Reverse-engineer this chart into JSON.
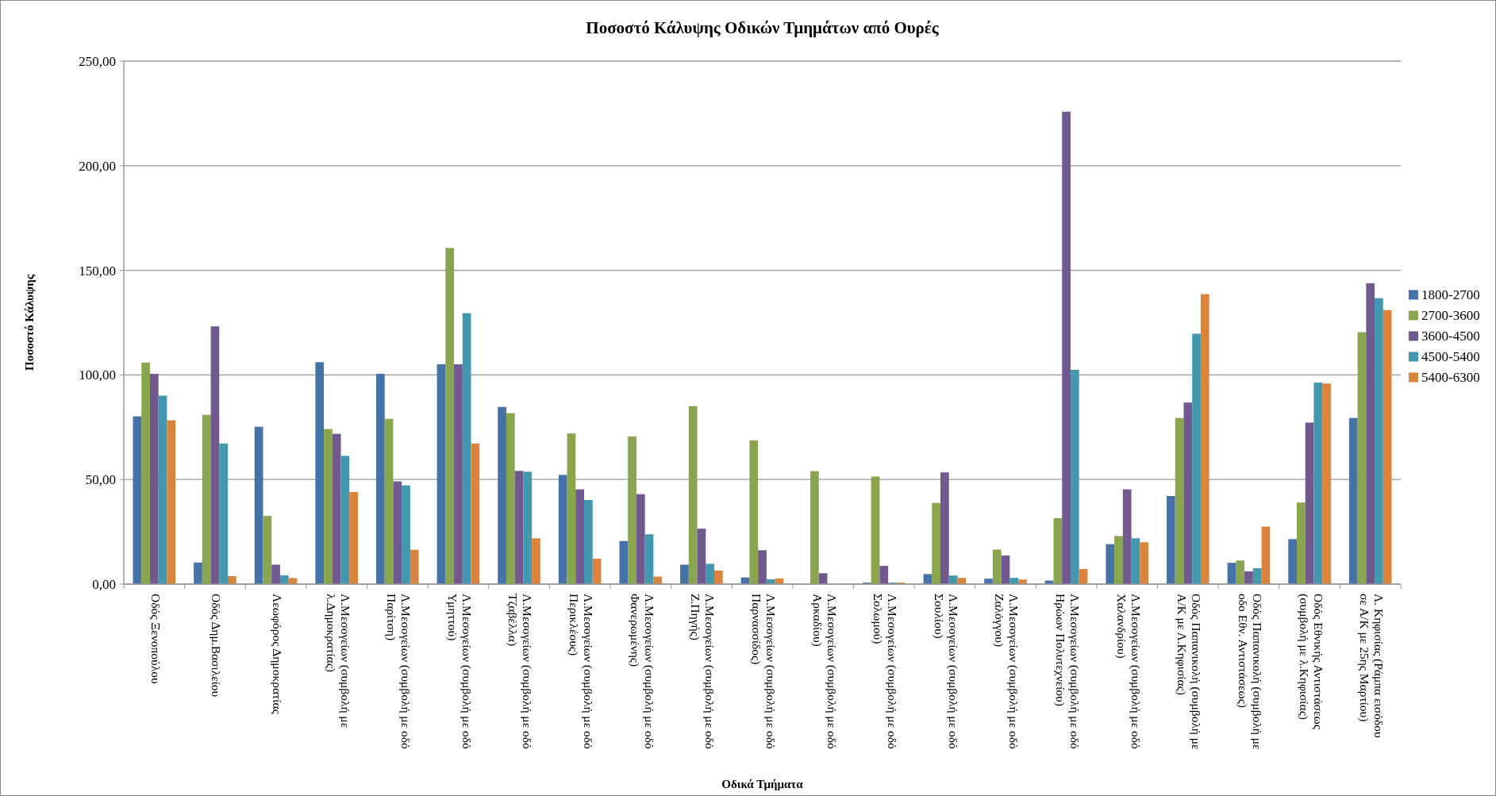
{
  "chart_data": {
    "type": "bar",
    "title": "Ποσοστό Κάλυψης Οδικών Τμημάτων από Ουρές",
    "xlabel": "Οδικά Τμήματα",
    "ylabel": "Ποσοστό Κάλυψης",
    "categories": [
      "Οδός Ξενοπούλου",
      "Οδός Δημ.Βασιλείου",
      "Λεωφόρος Δημοκρατίας",
      "Λ.Μεσογείων (συμβολή με λ.Δημοκρατίας)",
      "Λ.Μεσογείων (συμβολή με οδό Παρίτση)",
      "Λ.Μεσογείων (συμβολή με οδό Υμηττού)",
      "Λ.Μεσογείων (συμβολή με οδό Τζαβέλλα)",
      "Λ.Μεσογείων (συμβολή με οδό Περικλέους)",
      "Λ.Μεσογείων (συμβολή με οδό Φανερωμένης)",
      "Λ.Μεσογείων (συμβολή με οδό Ζ.Πηγής)",
      "Λ.Μεσογείων (συμβολή με οδό Παρνασσίδος)",
      "Λ.Μεσογείων (συμβολή με οδό Αρκαδίου)",
      "Λ.Μεσογείων (συμβολή με οδό Σολωμού)",
      "Λ.Μεσογείων (συμβολή με οδό Σουλίου)",
      "Λ.Μεσογείων (συμβολή με οδό Ζαλόγγου)",
      "Λ.Μεσογείων (συμβολή με οδό Ηρώων Πολυτεχνείου)",
      "Λ.Μεσογείων (συμβολή με οδό Χαλανδρίου)",
      "Οδός Παπανικολή (συμβολή με Α/Κ με Λ.Κηφισίας)",
      "Οδός Παπανικολή (συμβολή με οδο Εθν. Αντιστάσεως)",
      "Οδός Εθνικής Αντιστάσεως (συμβολή με λ.Κηφισίας)",
      "Λ. Κηφισίας (Ράμπα εισόδου σε Α/Κ με 25ης Μαρτίου)"
    ],
    "series": [
      {
        "name": "1800-2700",
        "color": "#4572a7",
        "values": [
          80.2,
          10.3,
          75.2,
          106.1,
          100.5,
          105.1,
          84.7,
          52.2,
          20.6,
          9.3,
          3.2,
          0,
          0.7,
          4.8,
          2.6,
          1.7,
          19.1,
          42.1,
          10.2,
          21.5,
          79.4
        ]
      },
      {
        "name": "2700-3600",
        "color": "#89a54e",
        "values": [
          105.9,
          80.9,
          32.6,
          74.1,
          79.0,
          160.7,
          81.7,
          72.0,
          70.6,
          85.1,
          68.7,
          54.0,
          51.4,
          38.8,
          16.5,
          31.5,
          23.0,
          79.4,
          11.3,
          39.0,
          120.4
        ]
      },
      {
        "name": "3600-4500",
        "color": "#71588f",
        "values": [
          100.5,
          123.2,
          9.3,
          71.8,
          49.1,
          105.1,
          54.1,
          45.3,
          43.0,
          26.5,
          16.2,
          5.2,
          8.7,
          53.4,
          13.7,
          225.8,
          45.3,
          86.8,
          6.1,
          77.2,
          143.8
        ]
      },
      {
        "name": "4500-5400",
        "color": "#4198af",
        "values": [
          90.1,
          67.2,
          4.2,
          61.3,
          47.2,
          129.5,
          53.7,
          40.2,
          23.8,
          9.7,
          2.3,
          0,
          0.7,
          4.1,
          3.0,
          102.4,
          21.9,
          119.7,
          7.6,
          96.3,
          136.7
        ]
      },
      {
        "name": "5400-6300",
        "color": "#db843d",
        "values": [
          78.3,
          3.8,
          2.9,
          44.0,
          16.4,
          67.2,
          21.9,
          12.2,
          3.6,
          6.5,
          2.7,
          0,
          0.7,
          3.0,
          2.2,
          7.2,
          20.0,
          138.6,
          27.5,
          95.9,
          131.0
        ]
      }
    ],
    "ylim": [
      0,
      250
    ],
    "yticks": [
      {
        "value": 0,
        "label": "0,00"
      },
      {
        "value": 50,
        "label": "50,00"
      },
      {
        "value": 100,
        "label": "100,00"
      },
      {
        "value": 150,
        "label": "150,00"
      },
      {
        "value": 200,
        "label": "200,00"
      },
      {
        "value": 250,
        "label": "250,00"
      }
    ],
    "grid": "y",
    "legend": "right"
  }
}
